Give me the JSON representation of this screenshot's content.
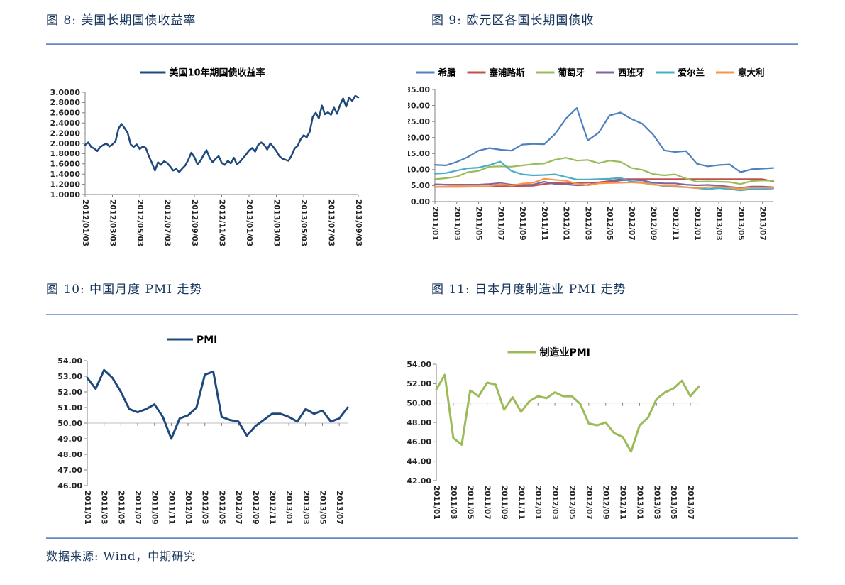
{
  "footer": {
    "label": "数据来源: Wind，中期研究"
  },
  "colors": {
    "title_navy": "#17365D",
    "rule_blue": "#5E8BC8",
    "us_line": "#1F497D",
    "greece": "#4F81BD",
    "cyprus": "#C0504D",
    "portugal": "#9BBB59",
    "spain": "#8064A2",
    "ireland": "#4BACC6",
    "italy": "#F79646",
    "japan_pmi": "#9BBB59",
    "axis_text": "#262626",
    "axis_line": "#808080",
    "cross_grid": "#BFBFBF"
  },
  "chart_data": [
    {
      "id": "fig8",
      "type": "line",
      "title": "图 8: 美国长期国债收益率",
      "legend_position": "top",
      "grid": "off",
      "ylim": [
        1.0,
        3.0
      ],
      "ytick_labels": [
        "3.0000",
        "2.8000",
        "2.6000",
        "2.4000",
        "2.2000",
        "2.0000",
        "1.8000",
        "1.6000",
        "1.4000",
        "1.2000",
        "1.0000"
      ],
      "x_axis_at": 1.0,
      "x_labels": [
        "2012/01/03",
        "2012/03/03",
        "2012/05/03",
        "2012/07/03",
        "2012/09/03",
        "2012/11/03",
        "2013/01/03",
        "2013/03/03",
        "2013/05/03",
        "2013/07/03",
        "2013/09/03"
      ],
      "series": [
        {
          "name": "美国10年期国债收益率",
          "color": "#1F497D",
          "values": [
            1.97,
            2.02,
            1.93,
            1.9,
            1.85,
            1.93,
            1.97,
            2.0,
            1.94,
            1.98,
            2.04,
            2.29,
            2.38,
            2.3,
            2.21,
            1.98,
            1.93,
            1.98,
            1.89,
            1.94,
            1.91,
            1.75,
            1.62,
            1.47,
            1.63,
            1.58,
            1.65,
            1.62,
            1.55,
            1.47,
            1.5,
            1.44,
            1.51,
            1.57,
            1.68,
            1.82,
            1.73,
            1.59,
            1.66,
            1.77,
            1.87,
            1.72,
            1.63,
            1.7,
            1.75,
            1.62,
            1.58,
            1.66,
            1.61,
            1.72,
            1.59,
            1.64,
            1.71,
            1.78,
            1.86,
            1.91,
            1.84,
            1.97,
            2.02,
            1.97,
            1.88,
            2.0,
            1.93,
            1.85,
            1.75,
            1.7,
            1.68,
            1.66,
            1.76,
            1.9,
            1.95,
            2.08,
            2.16,
            2.12,
            2.23,
            2.52,
            2.6,
            2.49,
            2.74,
            2.57,
            2.61,
            2.56,
            2.7,
            2.58,
            2.75,
            2.88,
            2.72,
            2.9,
            2.83,
            2.93,
            2.9
          ]
        }
      ]
    },
    {
      "id": "fig9",
      "type": "line",
      "title": "图 9: 欧元区各国长期国债收",
      "legend_position": "top",
      "grid": "off",
      "ylim": [
        0,
        35
      ],
      "ytick_labels": [
        "35.00",
        "30.00",
        "25.00",
        "20.00",
        "15.00",
        "10.00",
        "5.00",
        "0.00"
      ],
      "x_axis_at": 0,
      "label_every": 2,
      "x_labels": [
        "2011/01",
        "2011/03",
        "2011/05",
        "2011/07",
        "2011/09",
        "2011/11",
        "2012/01",
        "2012/03",
        "2012/05",
        "2012/07",
        "2012/09",
        "2012/11",
        "2013/01",
        "2013/03",
        "2013/05",
        "2013/07"
      ],
      "series": [
        {
          "name": "希腊",
          "color": "#4F81BD",
          "values": [
            11.5,
            11.3,
            12.4,
            13.9,
            15.9,
            16.7,
            16.2,
            15.9,
            17.8,
            18.0,
            17.9,
            21.1,
            25.9,
            29.2,
            19.1,
            21.5,
            26.9,
            27.8,
            25.8,
            24.3,
            20.9,
            16.0,
            15.5,
            15.8,
            11.8,
            11.0,
            11.4,
            11.6,
            9.2,
            10.1,
            10.3,
            10.5
          ]
        },
        {
          "name": "塞浦路斯",
          "color": "#C0504D",
          "values": [
            4.6,
            4.6,
            4.6,
            4.65,
            4.7,
            4.75,
            4.8,
            4.85,
            4.9,
            4.95,
            5.5,
            5.8,
            5.7,
            5.8,
            5.9,
            6.0,
            6.4,
            7.0,
            7.0,
            7.0,
            7.0,
            7.0,
            7.0,
            7.0,
            7.0,
            7.0,
            7.0,
            7.0,
            7.0,
            7.0,
            7.0,
            6.3
          ]
        },
        {
          "name": "葡萄牙",
          "color": "#9BBB59",
          "values": [
            7.0,
            7.3,
            7.8,
            9.2,
            9.6,
            10.9,
            11.0,
            10.9,
            11.3,
            11.7,
            11.9,
            13.1,
            13.7,
            12.8,
            13.0,
            12.0,
            12.8,
            12.4,
            10.5,
            9.9,
            8.6,
            8.2,
            8.5,
            7.2,
            6.2,
            6.3,
            6.2,
            6.1,
            5.5,
            6.4,
            6.6,
            6.5
          ]
        },
        {
          "name": "西班牙",
          "color": "#8064A2",
          "values": [
            5.4,
            5.3,
            5.3,
            5.3,
            5.3,
            5.5,
            5.8,
            5.3,
            5.2,
            5.3,
            6.2,
            5.5,
            5.4,
            5.1,
            5.2,
            5.8,
            6.1,
            6.6,
            6.8,
            6.6,
            5.9,
            5.7,
            5.7,
            5.3,
            5.1,
            5.2,
            5.0,
            4.6,
            4.3,
            4.7,
            4.7,
            4.5
          ]
        },
        {
          "name": "爱尔兰",
          "color": "#4BACC6",
          "values": [
            8.7,
            8.9,
            9.7,
            10.4,
            10.6,
            11.4,
            12.5,
            9.6,
            8.5,
            8.2,
            8.3,
            8.5,
            7.7,
            6.9,
            6.9,
            7.0,
            7.1,
            7.4,
            6.2,
            6.0,
            5.4,
            4.8,
            4.6,
            4.5,
            4.2,
            3.9,
            4.2,
            3.9,
            3.5,
            3.9,
            3.9,
            4.1
          ]
        },
        {
          "name": "意大利",
          "color": "#F79646",
          "values": [
            4.7,
            4.7,
            4.9,
            4.8,
            4.8,
            4.8,
            5.5,
            5.0,
            5.6,
            5.9,
            7.1,
            6.8,
            6.5,
            5.6,
            5.1,
            5.7,
            5.8,
            5.9,
            6.0,
            5.8,
            5.3,
            5.0,
            4.9,
            4.5,
            4.2,
            4.5,
            4.6,
            4.3,
            4.0,
            4.4,
            4.4,
            4.3
          ]
        }
      ]
    },
    {
      "id": "fig10",
      "type": "line",
      "title": "图 10: 中国月度 PMI 走势",
      "legend_position": "top",
      "grid": "off",
      "ylim": [
        46,
        54
      ],
      "ytick_labels": [
        "54.00",
        "53.00",
        "52.00",
        "51.00",
        "50.00",
        "49.00",
        "48.00",
        "47.00",
        "46.00"
      ],
      "x_axis_at": 50,
      "label_every": 2,
      "x_labels": [
        "2011/01",
        "2011/03",
        "2011/05",
        "2011/07",
        "2011/09",
        "2011/11",
        "2012/01",
        "2012/03",
        "2012/05",
        "2012/07",
        "2012/09",
        "2012/11",
        "2013/01",
        "2013/03",
        "2013/05",
        "2013/07"
      ],
      "series": [
        {
          "name": "PMI",
          "color": "#1F497D",
          "values": [
            52.9,
            52.2,
            53.4,
            52.9,
            52.0,
            50.9,
            50.7,
            50.9,
            51.2,
            50.4,
            49.0,
            50.3,
            50.5,
            51.0,
            53.1,
            53.3,
            50.4,
            50.2,
            50.1,
            49.2,
            49.8,
            50.2,
            50.6,
            50.6,
            50.4,
            50.1,
            50.9,
            50.6,
            50.8,
            50.1,
            50.3,
            51.0
          ]
        }
      ]
    },
    {
      "id": "fig11",
      "type": "line",
      "title": "图 11: 日本月度制造业 PMI 走势",
      "legend_position": "top",
      "grid": "off",
      "ylim": [
        42,
        54
      ],
      "ytick_labels": [
        "54.00",
        "52.00",
        "50.00",
        "48.00",
        "46.00",
        "44.00",
        "42.00"
      ],
      "x_axis_at": 50,
      "label_every": 2,
      "x_labels": [
        "2011/01",
        "2011/03",
        "2011/05",
        "2011/07",
        "2011/09",
        "2011/11",
        "2012/01",
        "2012/03",
        "2012/05",
        "2012/07",
        "2012/09",
        "2012/11",
        "2013/01",
        "2013/03",
        "2013/05",
        "2013/07"
      ],
      "series": [
        {
          "name": "制造业PMI",
          "color": "#9BBB59",
          "values": [
            51.4,
            52.9,
            46.4,
            45.7,
            51.3,
            50.7,
            52.1,
            51.9,
            49.3,
            50.6,
            49.1,
            50.2,
            50.7,
            50.5,
            51.1,
            50.7,
            50.7,
            49.9,
            47.9,
            47.7,
            48.0,
            46.9,
            46.5,
            45.0,
            47.7,
            48.5,
            50.4,
            51.1,
            51.5,
            52.3,
            50.7,
            51.7
          ]
        }
      ]
    }
  ]
}
